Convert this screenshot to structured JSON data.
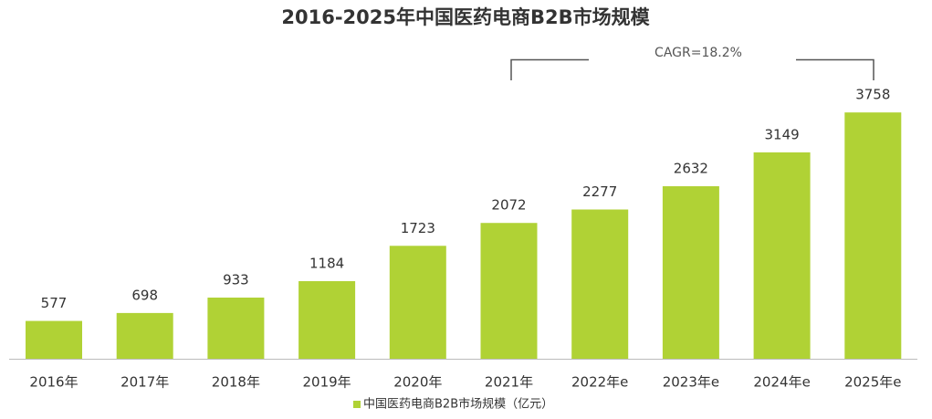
{
  "chart_data": {
    "type": "bar",
    "title": "2016-2025年中国医药电商B2B市场规模",
    "categories": [
      "2016年",
      "2017年",
      "2018年",
      "2019年",
      "2020年",
      "2021年",
      "2022年e",
      "2023年e",
      "2024年e",
      "2025年e"
    ],
    "series": [
      {
        "name": "中国医药电商B2B市场规模（亿元）",
        "color": "#b0d235",
        "values": [
          577,
          698,
          933,
          1184,
          1723,
          2072,
          2277,
          2632,
          3149,
          3758
        ]
      }
    ],
    "annotation": "CAGR=18.2%"
  }
}
